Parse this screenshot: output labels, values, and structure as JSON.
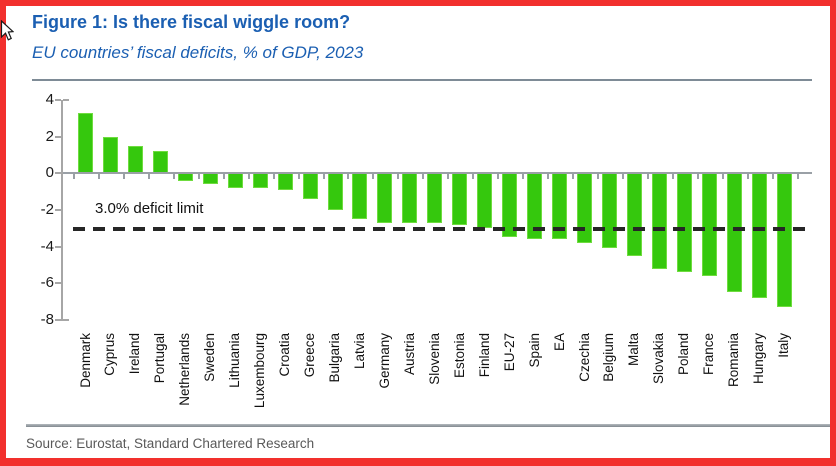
{
  "header": {
    "title": "Figure 1: Is there fiscal wiggle room?",
    "subtitle": "EU countries’ fiscal deficits, % of GDP, 2023"
  },
  "chart_data": {
    "type": "bar",
    "title": "EU countries' fiscal deficits, % of GDP, 2023",
    "categories": [
      "Denmark",
      "Cyprus",
      "Ireland",
      "Portugal",
      "Netherlands",
      "Sweden",
      "Lithuania",
      "Luxembourg",
      "Croatia",
      "Greece",
      "Bulgaria",
      "Latvia",
      "Germany",
      "Austria",
      "Slovenia",
      "Estonia",
      "Finland",
      "EU-27",
      "Spain",
      "EA",
      "Czechia",
      "Belgium",
      "Malta",
      "Slovakia",
      "Poland",
      "France",
      "Romania",
      "Hungary",
      "Italy"
    ],
    "values": [
      3.3,
      2.0,
      1.5,
      1.2,
      -0.4,
      -0.6,
      -0.8,
      -0.8,
      -0.9,
      -1.4,
      -2.0,
      -2.5,
      -2.7,
      -2.7,
      -2.7,
      -2.8,
      -3.0,
      -3.5,
      -3.6,
      -3.6,
      -3.8,
      -4.1,
      -4.5,
      -5.2,
      -5.4,
      -5.6,
      -6.5,
      -6.8,
      -7.3
    ],
    "xlabel": "",
    "ylabel": "",
    "ylim": [
      -8,
      4
    ],
    "yticks": [
      4,
      2,
      0,
      -2,
      -4,
      -6,
      -8
    ],
    "grid": false,
    "legend": false,
    "reference_line": {
      "value": -3,
      "label": "3.0% deficit limit"
    },
    "bar_color": "#35c80d"
  },
  "footer": {
    "source": "Source: Eurostat, Standard Chartered Research"
  },
  "colors": {
    "accent_blue": "#1b5fb2",
    "bar_green": "#35c80d",
    "frame_red": "#f2302d",
    "limit_line": "#262626"
  },
  "icons": {
    "cursor": "mouse-pointer-icon"
  }
}
